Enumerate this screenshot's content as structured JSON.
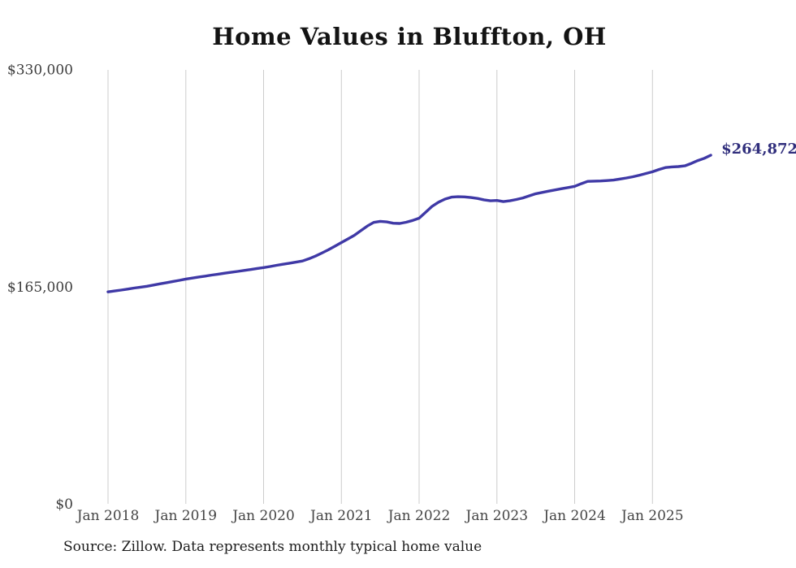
{
  "chart": {
    "title": "Home Values in Bluffton, OH",
    "source": "Source: Zillow. Data represents monthly typical home value",
    "end_label": "$264,872"
  },
  "style": {
    "line_color": "#3F39A6",
    "end_label_color": "#302E7C",
    "gridline_color": "#cccccc",
    "x_tick_color": "#444444",
    "y_tick_color": "#3d3d3d",
    "title_color": "#131313",
    "source_color": "#1c1c1c",
    "background": "#ffffff"
  },
  "chart_data": {
    "type": "line",
    "title": "Home Values in Bluffton, OH",
    "xlabel": "",
    "ylabel": "",
    "ylim": [
      0,
      330000
    ],
    "grid": "vertical-yearly-only",
    "legend": null,
    "end_label": "$264,872",
    "final_value": 264872,
    "y_ticks": [
      {
        "label": "$330,000",
        "value": 330000
      },
      {
        "label": "$165,000",
        "value": 165000
      },
      {
        "label": "$0",
        "value": 0
      }
    ],
    "x_ticks": [
      {
        "label": "Jan 2018",
        "month_index": 0
      },
      {
        "label": "Jan 2019",
        "month_index": 12
      },
      {
        "label": "Jan 2020",
        "month_index": 24
      },
      {
        "label": "Jan 2021",
        "month_index": 36
      },
      {
        "label": "Jan 2022",
        "month_index": 48
      },
      {
        "label": "Jan 2023",
        "month_index": 60
      },
      {
        "label": "Jan 2024",
        "month_index": 72
      },
      {
        "label": "Jan 2025",
        "month_index": 84
      }
    ],
    "x": [
      "2018-01",
      "2018-02",
      "2018-03",
      "2018-04",
      "2018-05",
      "2018-06",
      "2018-07",
      "2018-08",
      "2018-09",
      "2018-10",
      "2018-11",
      "2018-12",
      "2019-01",
      "2019-02",
      "2019-03",
      "2019-04",
      "2019-05",
      "2019-06",
      "2019-07",
      "2019-08",
      "2019-09",
      "2019-10",
      "2019-11",
      "2019-12",
      "2020-01",
      "2020-02",
      "2020-03",
      "2020-04",
      "2020-05",
      "2020-06",
      "2020-07",
      "2020-08",
      "2020-09",
      "2020-10",
      "2020-11",
      "2020-12",
      "2021-01",
      "2021-02",
      "2021-03",
      "2021-04",
      "2021-05",
      "2021-06",
      "2021-07",
      "2021-08",
      "2021-09",
      "2021-10",
      "2021-11",
      "2021-12",
      "2022-01",
      "2022-02",
      "2022-03",
      "2022-04",
      "2022-05",
      "2022-06",
      "2022-07",
      "2022-08",
      "2022-09",
      "2022-10",
      "2022-11",
      "2022-12",
      "2023-01",
      "2023-02",
      "2023-03",
      "2023-04",
      "2023-05",
      "2023-06",
      "2023-07",
      "2023-08",
      "2023-09",
      "2023-10",
      "2023-11",
      "2023-12",
      "2024-01",
      "2024-02",
      "2024-03",
      "2024-04",
      "2024-05",
      "2024-06",
      "2024-07",
      "2024-08",
      "2024-09",
      "2024-10",
      "2024-11",
      "2024-12",
      "2025-01",
      "2025-02",
      "2025-03",
      "2025-04",
      "2025-05",
      "2025-06",
      "2025-07",
      "2025-08",
      "2025-09",
      "2025-10"
    ],
    "values": [
      161000,
      161700,
      162400,
      163100,
      163900,
      164600,
      165300,
      166200,
      167100,
      168000,
      168900,
      169800,
      170800,
      171500,
      172300,
      173000,
      173800,
      174500,
      175200,
      175900,
      176600,
      177300,
      178000,
      178800,
      179500,
      180300,
      181200,
      182000,
      182800,
      183600,
      184500,
      186200,
      188200,
      190500,
      193000,
      195700,
      198500,
      201200,
      204000,
      207500,
      211000,
      213800,
      214600,
      214200,
      213200,
      213000,
      213900,
      215300,
      217000,
      221500,
      226000,
      229200,
      231500,
      233000,
      233300,
      233200,
      232700,
      232000,
      231000,
      230200,
      230500,
      229600,
      230200,
      231200,
      232400,
      234000,
      235600,
      236600,
      237600,
      238500,
      239400,
      240300,
      241200,
      243200,
      245000,
      245200,
      245300,
      245600,
      246000,
      246800,
      247600,
      248500,
      249700,
      251000,
      252300,
      254000,
      255500,
      256000,
      256200,
      256800,
      258600,
      260800,
      262500,
      264872
    ]
  }
}
